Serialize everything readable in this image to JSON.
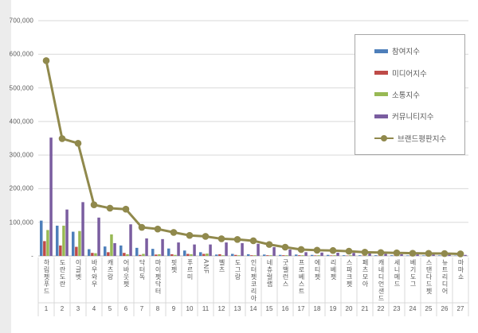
{
  "page": {
    "background_color": "#ececec",
    "panel_color": "#ffffff",
    "grid_color": "#d9d9d9",
    "axis_color": "#bfbfbf",
    "text_color": "#595959",
    "legend_border_color": "#a6a6a6"
  },
  "legend": {
    "items": [
      {
        "label": "참여지수",
        "color": "#4e7fba",
        "type": "bar"
      },
      {
        "label": "미디어지수",
        "color": "#be4b48",
        "type": "bar"
      },
      {
        "label": "소통지수",
        "color": "#98b954",
        "type": "bar"
      },
      {
        "label": "커뮤니티지수",
        "color": "#7a5da0",
        "type": "bar"
      },
      {
        "label": "브랜드평판지수",
        "color": "#90894c",
        "type": "line"
      }
    ]
  },
  "y_axis": {
    "tick_labels": [
      "-",
      "100,000",
      "200,000",
      "300,000",
      "400,000",
      "500,000",
      "600,000",
      "700,000"
    ],
    "tick_values": [
      0,
      100000,
      200000,
      300000,
      400000,
      500000,
      600000,
      700000
    ]
  },
  "chart_data": {
    "type": "bar",
    "combo": "grouped bars + line overlay",
    "title": "",
    "xlabel": "",
    "ylabel": "",
    "ylim": [
      0,
      700000
    ],
    "grid": true,
    "legend_position": "top-right",
    "categories": [
      "하림펫푸드",
      "도란도란",
      "이글벳",
      "바우와우",
      "캐츠랑",
      "어바웃펫",
      "닥터독",
      "마이펫닥터",
      "핏펫",
      "푸르미",
      "ANF",
      "벨츠",
      "도그랑",
      "인터펫코리아",
      "네츄럴랩",
      "굿밸런스",
      "프로베스트",
      "에티펫",
      "리베펫",
      "스파크펫",
      "페츠모아",
      "캐네디언샌드",
      "세니메드",
      "베기도그",
      "스탠다드펫",
      "뉴트리디어",
      "마마쇼"
    ],
    "ranks": [
      1,
      2,
      3,
      4,
      5,
      6,
      7,
      8,
      9,
      10,
      11,
      12,
      13,
      14,
      15,
      16,
      17,
      18,
      19,
      20,
      21,
      22,
      23,
      24,
      25,
      26,
      27
    ],
    "series": [
      {
        "name": "참여지수",
        "type": "bar",
        "color": "#4e7fba",
        "values": [
          105000,
          90000,
          72000,
          20000,
          28000,
          31000,
          24000,
          21000,
          22000,
          16000,
          11000,
          4000,
          6000,
          5000,
          4000,
          3000,
          4000,
          3000,
          3000,
          2000,
          2000,
          2000,
          2000,
          1500,
          1500,
          1500,
          1000
        ]
      },
      {
        "name": "미디어지수",
        "type": "bar",
        "color": "#be4b48",
        "values": [
          44000,
          31000,
          27000,
          9000,
          11000,
          9000,
          3000,
          4000,
          5000,
          6000,
          6000,
          5000,
          3000,
          2000,
          2000,
          2000,
          2000,
          1500,
          1500,
          1000,
          1000,
          1000,
          1000,
          1000,
          1000,
          1000,
          1000
        ]
      },
      {
        "name": "소통지수",
        "type": "bar",
        "color": "#98b954",
        "values": [
          77000,
          90000,
          74000,
          8000,
          64000,
          5000,
          6000,
          5000,
          3000,
          5000,
          7000,
          2000,
          2000,
          2000,
          2000,
          2000,
          2000,
          2000,
          2000,
          2000,
          1000,
          1000,
          1000,
          1000,
          1000,
          1000,
          1000
        ]
      },
      {
        "name": "커뮤니티지수",
        "type": "bar",
        "color": "#7a5da0",
        "values": [
          352000,
          138000,
          160000,
          114000,
          38000,
          94000,
          52000,
          50000,
          40000,
          34000,
          34000,
          40000,
          38000,
          36000,
          26000,
          19000,
          11000,
          10000,
          9500,
          9000,
          7000,
          6000,
          5000,
          4500,
          4000,
          3500,
          3000
        ]
      },
      {
        "name": "브랜드평판지수",
        "type": "line",
        "color": "#90894c",
        "values": [
          581000,
          349000,
          335000,
          152000,
          142000,
          139000,
          85000,
          80000,
          70000,
          61000,
          58000,
          51000,
          49000,
          45000,
          34000,
          26000,
          19000,
          17000,
          16000,
          14000,
          11000,
          10000,
          9000,
          8000,
          7500,
          7000,
          6000
        ]
      }
    ]
  }
}
